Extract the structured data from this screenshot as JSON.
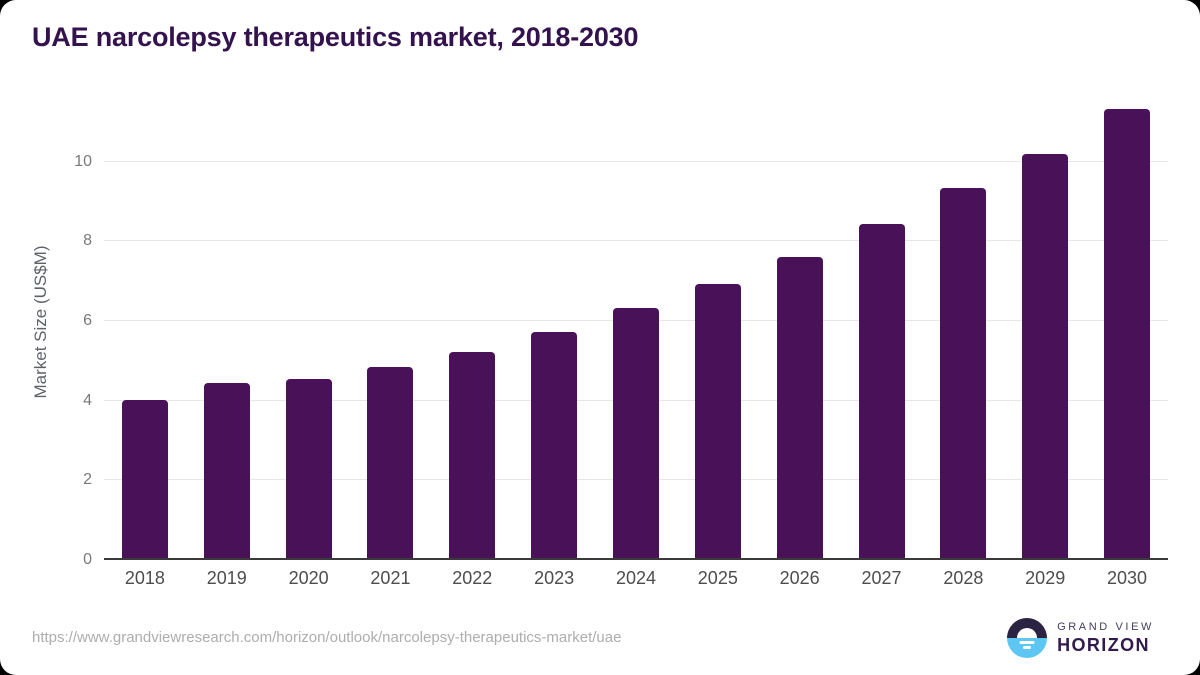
{
  "header": {
    "title": "UAE narcolepsy therapeutics market, 2018-2030"
  },
  "chart_data": {
    "type": "bar",
    "title": "UAE narcolepsy therapeutics market, 2018-2030",
    "xlabel": "",
    "ylabel": "Market Size (US$M)",
    "categories": [
      "2018",
      "2019",
      "2020",
      "2021",
      "2022",
      "2023",
      "2024",
      "2025",
      "2026",
      "2027",
      "2028",
      "2029",
      "2030"
    ],
    "values": [
      3.97,
      4.4,
      4.49,
      4.8,
      5.18,
      5.67,
      6.27,
      6.87,
      7.55,
      8.37,
      9.28,
      10.15,
      11.26
    ],
    "yticks": [
      0,
      2,
      4,
      6,
      8,
      10
    ],
    "ylim": [
      0,
      11.54
    ],
    "grid": "horizontal",
    "legend": "none"
  },
  "footer": {
    "source_url": "https://www.grandviewresearch.com/horizon/outlook/narcolepsy-therapeutics-market/uae",
    "logo": {
      "line1": "GRAND VIEW",
      "line2": "HORIZON"
    }
  },
  "colors": {
    "bar": "#491158",
    "title": "#33124e",
    "grid": "#e6e6e6",
    "axis_line": "#3a3a3a",
    "axis_title": "#5f6368",
    "tick_label": "#7a7a7a",
    "year_label": "#4d4d4d",
    "url": "#adadad",
    "logo_dark": "#2a2342",
    "logo_blue": "#5ec6f2",
    "logo_grand_view": "#41405f",
    "logo_horizon": "#311a4e"
  }
}
